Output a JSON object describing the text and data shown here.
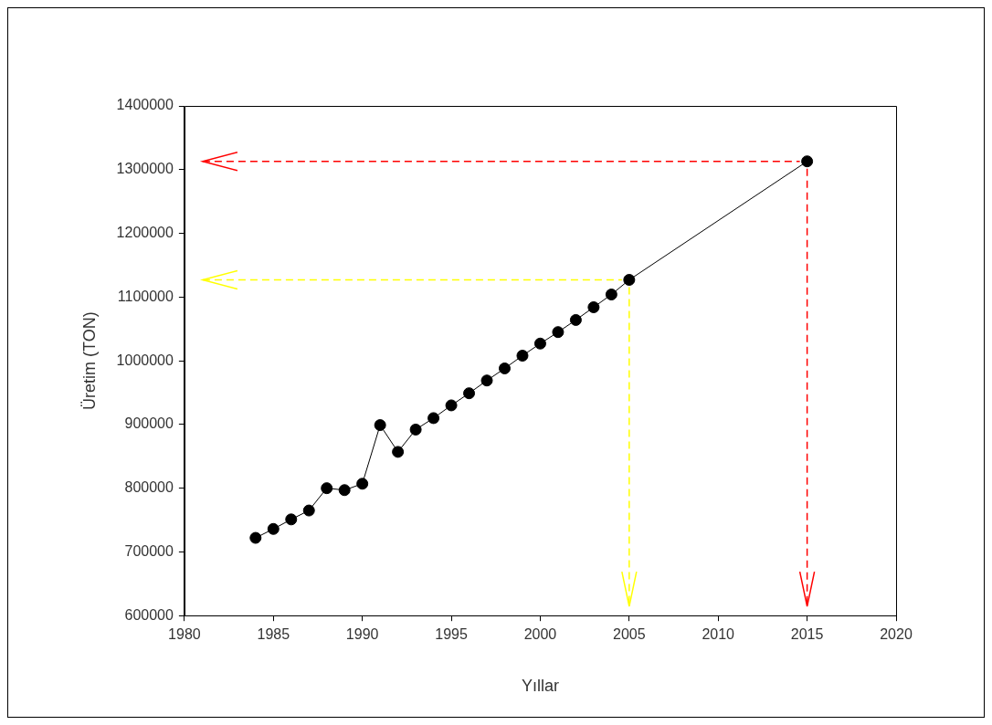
{
  "chart_data": {
    "type": "line",
    "xlabel": "Yıllar",
    "ylabel": "Üretim (TON)",
    "x": [
      1984,
      1985,
      1986,
      1987,
      1988,
      1989,
      1990,
      1991,
      1992,
      1993,
      1994,
      1995,
      1996,
      1997,
      1998,
      1999,
      2000,
      2001,
      2002,
      2003,
      2004,
      2005,
      2015
    ],
    "series": [
      {
        "color": "#000000",
        "values": [
          722000,
          736000,
          751000,
          765000,
          800000,
          797000,
          807000,
          899000,
          857000,
          892000,
          910000,
          930000,
          949000,
          969000,
          988000,
          1008000,
          1027000,
          1045000,
          1064000,
          1084000,
          1104000,
          1127000,
          1313000
        ]
      }
    ],
    "xlim": [
      1980,
      2020
    ],
    "xticks": [
      1980,
      1985,
      1990,
      1995,
      2000,
      2005,
      2010,
      2015,
      2020
    ],
    "ylim": [
      600000,
      1400000
    ],
    "yticks": [
      600000,
      700000,
      800000,
      900000,
      1000000,
      1100000,
      1200000,
      1300000,
      1400000
    ],
    "ref_lines": [
      {
        "axis": "y",
        "value": 1127000,
        "color": "#ffff00",
        "line_style": "dashed"
      },
      {
        "axis": "x",
        "value": 2005,
        "color": "#ffff00",
        "line_style": "dashed"
      },
      {
        "axis": "y",
        "value": 1313000,
        "color": "#ff0000",
        "line_style": "dashed"
      },
      {
        "axis": "x",
        "value": 2015,
        "color": "#ff0000",
        "line_style": "dashed"
      }
    ],
    "grid": false,
    "legend": false,
    "marker": "circle",
    "line_style": "solid"
  }
}
